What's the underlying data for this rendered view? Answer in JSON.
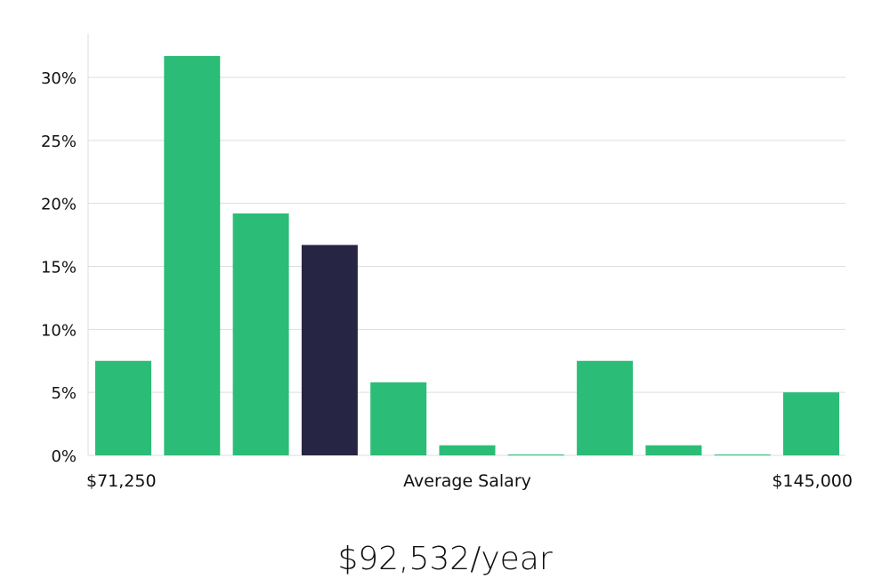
{
  "chart_data": {
    "type": "bar",
    "title": "",
    "xlabel": "Average Salary",
    "ylabel": "",
    "x_min_label": "$71,250",
    "x_max_label": "$145,000",
    "y_ticks": [
      0,
      5,
      10,
      15,
      20,
      25,
      30
    ],
    "y_tick_suffix": "%",
    "ylim": [
      0,
      33.5
    ],
    "grid": true,
    "values": [
      7.5,
      31.7,
      19.2,
      16.7,
      5.8,
      0.8,
      0.05,
      7.5,
      0.8,
      0.05,
      5.0
    ],
    "highlight_index": 3,
    "colors": {
      "bar": "#2bbd77",
      "highlight": "#272544",
      "grid": "#dddddd"
    }
  },
  "summary": {
    "salary_text": "$92,532/year"
  }
}
